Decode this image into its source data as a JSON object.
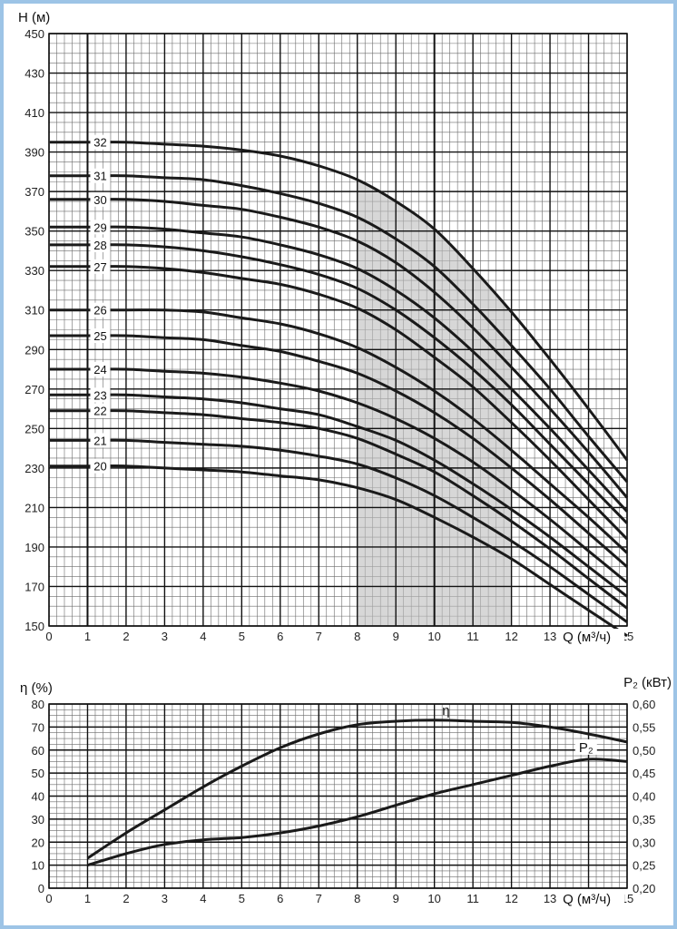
{
  "chart_data": [
    {
      "type": "line",
      "ylabel": "H (м)",
      "xlabel": "Q (м³/ч)",
      "xlim": [
        0,
        15
      ],
      "ylim": [
        150,
        450
      ],
      "x_ticks": [
        "0",
        "1",
        "2",
        "3",
        "4",
        "5",
        "6",
        "7",
        "8",
        "9",
        "10",
        "11",
        "12",
        "13",
        "15"
      ],
      "y_ticks": [
        "150",
        "170",
        "190",
        "210",
        "230",
        "250",
        "270",
        "290",
        "310",
        "330",
        "350",
        "370",
        "390",
        "410",
        "430",
        "450"
      ],
      "highlight_range_x": [
        8,
        12
      ],
      "x": [
        1,
        2,
        3,
        4,
        5,
        6,
        7,
        8,
        9,
        10,
        11,
        12,
        13,
        14,
        15
      ],
      "series": [
        {
          "name": "32",
          "values": [
            395,
            395,
            394,
            393,
            391,
            388,
            383,
            376,
            365,
            351,
            331,
            309,
            285,
            260,
            234
          ]
        },
        {
          "name": "31",
          "values": [
            378,
            378,
            377,
            376,
            373,
            369,
            364,
            357,
            346,
            332,
            313,
            292,
            270,
            246,
            223
          ]
        },
        {
          "name": "30",
          "values": [
            366,
            366,
            365,
            363,
            361,
            357,
            352,
            345,
            334,
            319,
            301,
            281,
            260,
            238,
            215
          ]
        },
        {
          "name": "29",
          "values": [
            352,
            352,
            351,
            349,
            347,
            343,
            338,
            331,
            320,
            306,
            289,
            270,
            250,
            229,
            208
          ]
        },
        {
          "name": "28",
          "values": [
            343,
            343,
            342,
            340,
            337,
            333,
            328,
            321,
            310,
            296,
            280,
            262,
            242,
            222,
            202
          ]
        },
        {
          "name": "27",
          "values": [
            332,
            332,
            331,
            329,
            326,
            323,
            318,
            311,
            300,
            286,
            271,
            253,
            234,
            214,
            194
          ]
        },
        {
          "name": "26",
          "values": [
            310,
            310,
            310,
            309,
            306,
            303,
            298,
            291,
            281,
            269,
            255,
            239,
            222,
            205,
            187
          ]
        },
        {
          "name": "25",
          "values": [
            297,
            297,
            296,
            295,
            292,
            289,
            284,
            278,
            269,
            258,
            245,
            230,
            214,
            197,
            180
          ]
        },
        {
          "name": "24",
          "values": [
            280,
            280,
            279,
            278,
            276,
            273,
            269,
            263,
            255,
            245,
            233,
            219,
            204,
            188,
            172
          ]
        },
        {
          "name": "23",
          "values": [
            267,
            267,
            266,
            265,
            263,
            260,
            257,
            251,
            244,
            234,
            222,
            209,
            195,
            180,
            165
          ]
        },
        {
          "name": "22",
          "values": [
            259,
            259,
            258,
            257,
            255,
            253,
            250,
            245,
            237,
            228,
            216,
            203,
            189,
            174,
            159
          ]
        },
        {
          "name": "21",
          "values": [
            244,
            244,
            243,
            242,
            241,
            239,
            236,
            232,
            225,
            216,
            205,
            193,
            180,
            166,
            152
          ]
        },
        {
          "name": "20",
          "values": [
            231,
            231,
            230,
            229,
            228,
            226,
            224,
            220,
            214,
            205,
            195,
            184,
            171,
            158,
            145
          ]
        }
      ]
    },
    {
      "type": "line",
      "ylabel": "η (%)",
      "y2label": "P₂ (кВт)",
      "xlabel": "Q (м³/ч)",
      "xlim": [
        0,
        15
      ],
      "ylim": [
        0,
        80
      ],
      "y2lim": [
        0.2,
        0.6
      ],
      "x_ticks": [
        "0",
        "1",
        "2",
        "3",
        "4",
        "5",
        "6",
        "7",
        "8",
        "9",
        "10",
        "11",
        "12",
        "13",
        "15"
      ],
      "y_ticks": [
        "0",
        "10",
        "20",
        "30",
        "40",
        "50",
        "60",
        "70",
        "80"
      ],
      "y2_ticks": [
        "0,20",
        "0,25",
        "0,30",
        "0,35",
        "0,40",
        "0,45",
        "0,50",
        "0,55",
        "0,60"
      ],
      "series": [
        {
          "name": "η",
          "axis": "left",
          "x": [
            1,
            2,
            3,
            4,
            5,
            6,
            7,
            8,
            9,
            10,
            11,
            12,
            13,
            14,
            15
          ],
          "values": [
            13,
            24,
            34,
            44,
            53,
            61,
            67,
            71,
            72.5,
            73,
            72.5,
            72,
            70,
            67,
            63.5
          ]
        },
        {
          "name": "P₂",
          "axis": "right",
          "x": [
            1,
            2,
            3,
            4,
            5,
            6,
            7,
            8,
            9,
            10,
            11,
            12,
            13,
            14,
            15
          ],
          "values": [
            0.25,
            0.275,
            0.295,
            0.305,
            0.31,
            0.32,
            0.335,
            0.355,
            0.38,
            0.405,
            0.425,
            0.445,
            0.465,
            0.48,
            0.475
          ]
        }
      ]
    }
  ]
}
